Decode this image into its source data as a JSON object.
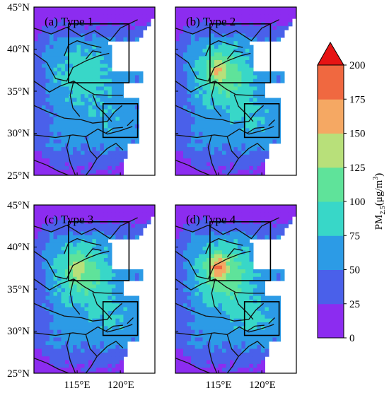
{
  "figure": {
    "panels": [
      {
        "title": "(a) Type 1",
        "intensity": 0.45,
        "hotspot": 0.0
      },
      {
        "title": "(b) Type 2",
        "intensity": 0.7,
        "hotspot": 0.55
      },
      {
        "title": "(c) Type 3",
        "intensity": 0.7,
        "hotspot": 0.35
      },
      {
        "title": "(d) Type 4",
        "intensity": 0.8,
        "hotspot": 0.75
      }
    ],
    "lat_ticks_labels": [
      "45°N",
      "40°N",
      "35°N",
      "30°N",
      "25°N"
    ],
    "lon_ticks_labels": [
      "115°E",
      "120°E"
    ],
    "lat_ticks": [
      45,
      40,
      35,
      30,
      25
    ],
    "lon_ticks": [
      115,
      120
    ],
    "extent": {
      "lon_min": 110,
      "lon_max": 124,
      "lat_min": 25,
      "lat_max": 45
    },
    "boxes": [
      {
        "name": "north-china-box",
        "lon": [
          114,
          121
        ],
        "lat": [
          36,
          43
        ]
      },
      {
        "name": "yangtze-delta-box",
        "lon": [
          118,
          122
        ],
        "lat": [
          29.5,
          33.5
        ]
      }
    ]
  },
  "colorbar": {
    "label_main": "PM",
    "label_sub": "2.5",
    "label_unit": "(μg/m",
    "label_sup": "3",
    "label_close": ")",
    "tick_labels": [
      "200",
      "175",
      "150",
      "125",
      "100",
      "75",
      "50",
      "25",
      "0"
    ],
    "levels": [
      0,
      25,
      50,
      75,
      100,
      125,
      150,
      175,
      200
    ],
    "colors": [
      "#8c2cf0",
      "#4a60ea",
      "#2c9be6",
      "#38d7c8",
      "#5fe39a",
      "#b8e07a",
      "#f5a863",
      "#f06840"
    ],
    "extend_color": "#e61414"
  }
}
